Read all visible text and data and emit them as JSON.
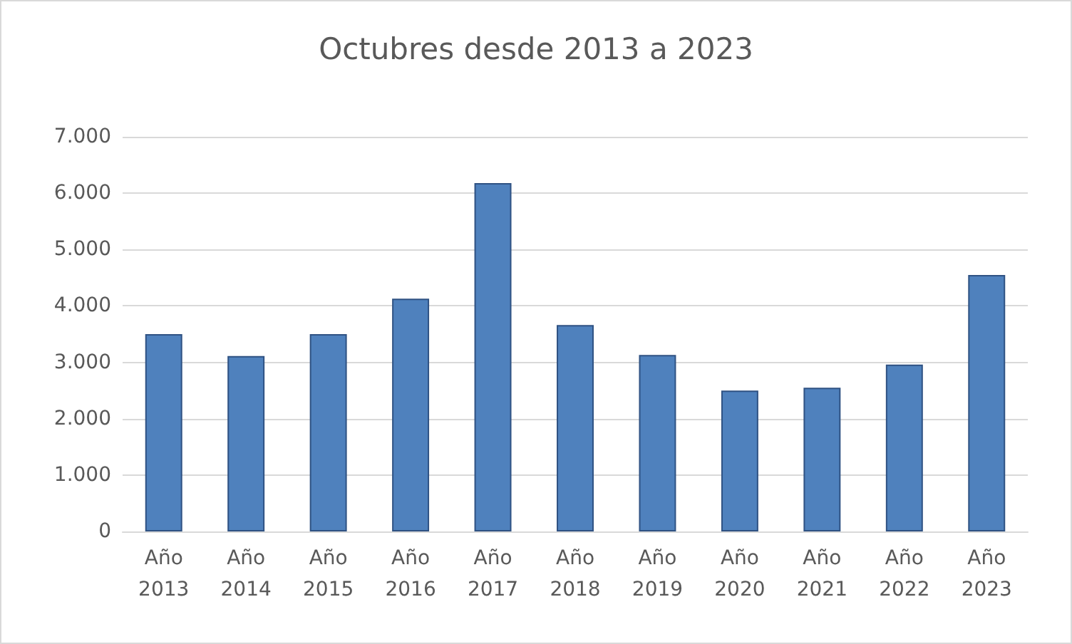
{
  "chart_data": {
    "type": "bar",
    "title": "Octubres desde 2013 a 2023",
    "categories": [
      "Año\n2013",
      "Año\n2014",
      "Año\n2015",
      "Año\n2016",
      "Año\n2017",
      "Año\n2018",
      "Año\n2019",
      "Año\n2020",
      "Año\n2021",
      "Año\n2022",
      "Año\n2023"
    ],
    "values": [
      3500,
      3110,
      3500,
      4130,
      6180,
      3660,
      3130,
      2500,
      2550,
      2960,
      4550
    ],
    "color": "#4f81bd",
    "ylim": [
      0,
      7000
    ],
    "yticks": [
      {
        "value": 0,
        "label": "0"
      },
      {
        "value": 1000,
        "label": "1.000"
      },
      {
        "value": 2000,
        "label": "2.000"
      },
      {
        "value": 3000,
        "label": "3.000"
      },
      {
        "value": 4000,
        "label": "4.000"
      },
      {
        "value": 5000,
        "label": "5.000"
      },
      {
        "value": 6000,
        "label": "6.000"
      },
      {
        "value": 7000,
        "label": "7.000"
      }
    ],
    "grid": true
  }
}
